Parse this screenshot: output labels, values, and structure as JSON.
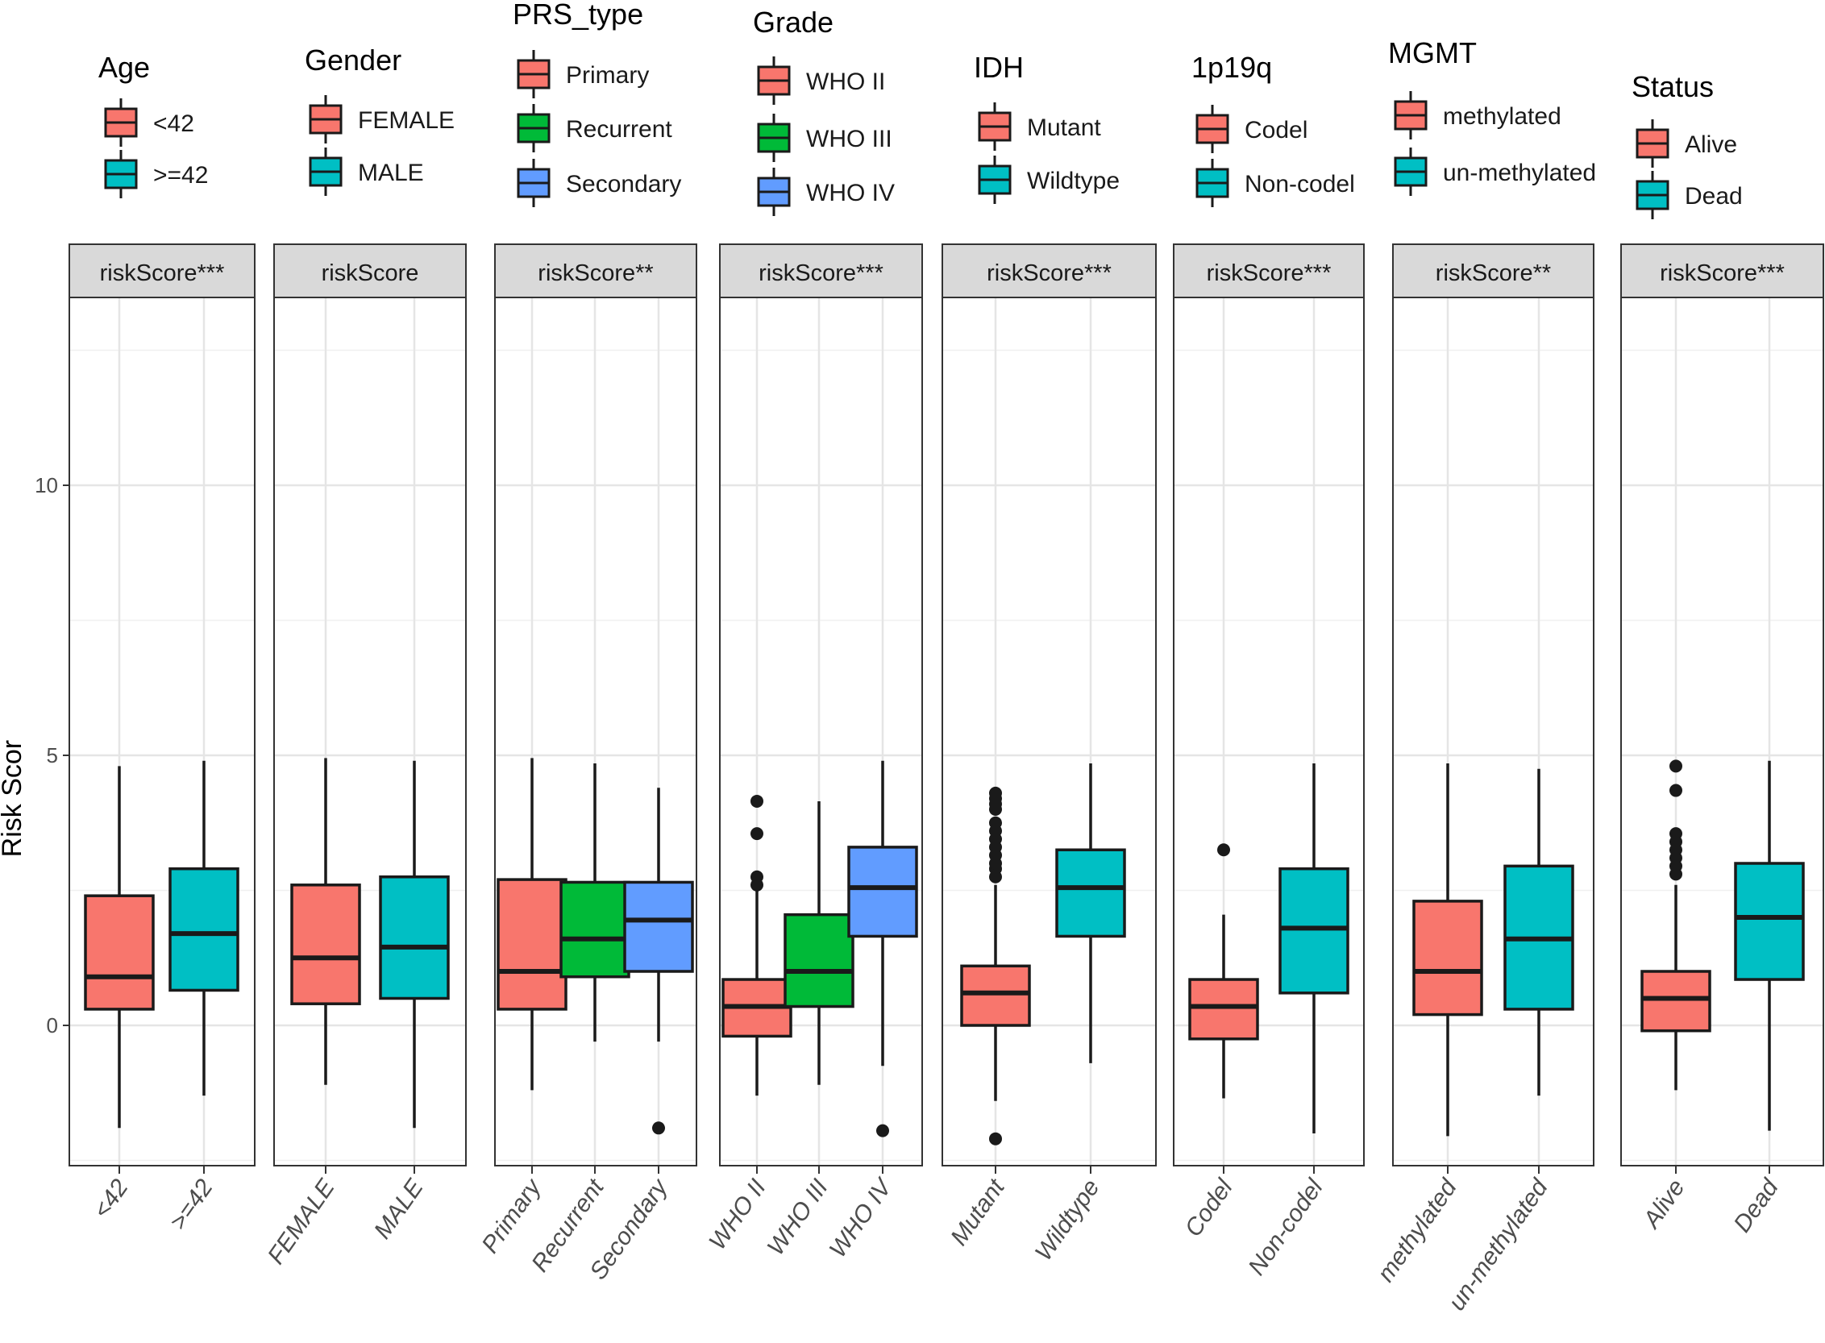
{
  "chart_data": {
    "type": "boxplot",
    "ylabel": "Risk Scor",
    "ylim": [
      -2.6,
      13.7
    ],
    "yticks": [
      0,
      5,
      10
    ],
    "grid": true,
    "legend_position": "top",
    "colors": {
      "red": "#F8766D",
      "cyan": "#00BFC4",
      "green": "#00BA38",
      "blue": "#619CFF",
      "strip": "#d9d9d9"
    },
    "panels": [
      {
        "strip": "riskScore***",
        "legend_title": "Age",
        "groups": [
          {
            "label": "<42",
            "color": "#F8766D",
            "whisker_low": -1.9,
            "q1": 0.3,
            "median": 0.9,
            "q3": 2.4,
            "whisker_high": 4.8,
            "outliers": []
          },
          {
            "label": ">=42",
            "color": "#00BFC4",
            "whisker_low": -1.3,
            "q1": 0.65,
            "median": 1.7,
            "q3": 2.9,
            "whisker_high": 4.9,
            "outliers": []
          }
        ]
      },
      {
        "strip": "riskScore",
        "legend_title": "Gender",
        "groups": [
          {
            "label": "FEMALE",
            "color": "#F8766D",
            "whisker_low": -1.1,
            "q1": 0.4,
            "median": 1.25,
            "q3": 2.6,
            "whisker_high": 4.95,
            "outliers": []
          },
          {
            "label": "MALE",
            "color": "#00BFC4",
            "whisker_low": -1.9,
            "q1": 0.5,
            "median": 1.45,
            "q3": 2.75,
            "whisker_high": 4.9,
            "outliers": []
          }
        ]
      },
      {
        "strip": "riskScore**",
        "legend_title": "PRS_type",
        "groups": [
          {
            "label": "Primary",
            "color": "#F8766D",
            "whisker_low": -1.2,
            "q1": 0.3,
            "median": 1.0,
            "q3": 2.7,
            "whisker_high": 4.95,
            "outliers": []
          },
          {
            "label": "Recurrent",
            "color": "#00BA38",
            "whisker_low": -0.3,
            "q1": 0.9,
            "median": 1.6,
            "q3": 2.65,
            "whisker_high": 4.85,
            "outliers": []
          },
          {
            "label": "Secondary",
            "color": "#619CFF",
            "whisker_low": -0.3,
            "q1": 1.0,
            "median": 1.95,
            "q3": 2.65,
            "whisker_high": 4.4,
            "outliers": [
              -1.9
            ]
          }
        ]
      },
      {
        "strip": "riskScore***",
        "legend_title": "Grade",
        "groups": [
          {
            "label": "WHO II",
            "color": "#F8766D",
            "whisker_low": -1.3,
            "q1": -0.2,
            "median": 0.35,
            "q3": 0.85,
            "whisker_high": 2.5,
            "outliers": [
              2.6,
              2.75,
              3.55,
              4.15
            ]
          },
          {
            "label": "WHO III",
            "color": "#00BA38",
            "whisker_low": -1.1,
            "q1": 0.35,
            "median": 1.0,
            "q3": 2.05,
            "whisker_high": 4.15,
            "outliers": []
          },
          {
            "label": "WHO IV",
            "color": "#619CFF",
            "whisker_low": -0.75,
            "q1": 1.65,
            "median": 2.55,
            "q3": 3.3,
            "whisker_high": 4.9,
            "outliers": [
              -1.95
            ]
          }
        ]
      },
      {
        "strip": "riskScore***",
        "legend_title": "IDH",
        "groups": [
          {
            "label": "Mutant",
            "color": "#F8766D",
            "whisker_low": -1.4,
            "q1": 0.0,
            "median": 0.6,
            "q3": 1.1,
            "whisker_high": 2.6,
            "outliers": [
              -2.1,
              2.75,
              2.9,
              3.0,
              3.15,
              3.3,
              3.45,
              3.6,
              3.75,
              4.0,
              4.1,
              4.2,
              4.3
            ]
          },
          {
            "label": "Wildtype",
            "color": "#00BFC4",
            "whisker_low": -0.7,
            "q1": 1.65,
            "median": 2.55,
            "q3": 3.25,
            "whisker_high": 4.85,
            "outliers": []
          }
        ]
      },
      {
        "strip": "riskScore***",
        "legend_title": "1p19q",
        "groups": [
          {
            "label": "Codel",
            "color": "#F8766D",
            "whisker_low": -1.35,
            "q1": -0.25,
            "median": 0.35,
            "q3": 0.85,
            "whisker_high": 2.05,
            "outliers": [
              3.25
            ]
          },
          {
            "label": "Non-codel",
            "color": "#00BFC4",
            "whisker_low": -2.0,
            "q1": 0.6,
            "median": 1.8,
            "q3": 2.9,
            "whisker_high": 4.85,
            "outliers": []
          }
        ]
      },
      {
        "strip": "riskScore**",
        "legend_title": "MGMT",
        "groups": [
          {
            "label": "methylated",
            "color": "#F8766D",
            "whisker_low": -2.05,
            "q1": 0.2,
            "median": 1.0,
            "q3": 2.3,
            "whisker_high": 4.85,
            "outliers": []
          },
          {
            "label": "un-methylated",
            "color": "#00BFC4",
            "whisker_low": -1.3,
            "q1": 0.3,
            "median": 1.6,
            "q3": 2.95,
            "whisker_high": 4.75,
            "outliers": []
          }
        ]
      },
      {
        "strip": "riskScore***",
        "legend_title": "Status",
        "groups": [
          {
            "label": "Alive",
            "color": "#F8766D",
            "whisker_low": -1.2,
            "q1": -0.1,
            "median": 0.5,
            "q3": 1.0,
            "whisker_high": 2.6,
            "outliers": [
              2.8,
              2.95,
              3.1,
              3.25,
              3.4,
              3.55,
              4.35,
              4.8
            ]
          },
          {
            "label": "Dead",
            "color": "#00BFC4",
            "whisker_low": -1.95,
            "q1": 0.85,
            "median": 2.0,
            "q3": 3.0,
            "whisker_high": 4.9,
            "outliers": []
          }
        ]
      }
    ]
  }
}
